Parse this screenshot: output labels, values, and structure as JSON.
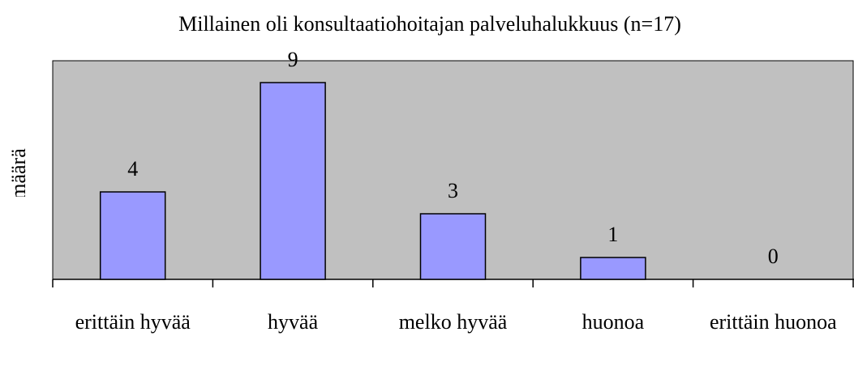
{
  "chart_data": {
    "type": "bar",
    "title": "Millainen oli konsultaatiohoitajan palveluhalukkuus (n=17)",
    "y_label": "määrä",
    "categories": [
      "erittäin hyvää",
      "hyvää",
      "melko hyvää",
      "huonoa",
      "erittäin huonoa"
    ],
    "values": [
      4,
      9,
      3,
      1,
      0
    ],
    "color": "#9999ff",
    "plot_background": "#c0c0c0",
    "ylim": [
      0,
      10
    ]
  }
}
